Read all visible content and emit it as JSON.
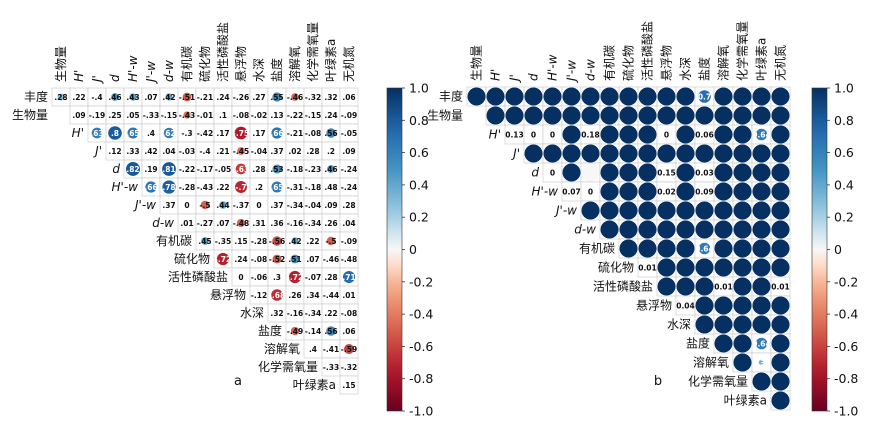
{
  "vars_top": [
    "生物量",
    "H'",
    "J'",
    "d",
    "H'-w",
    "J'-w",
    "d-w",
    "有机碳",
    "硫化物",
    "活性磷酸盐",
    "悬浮物",
    "水深",
    "盐度",
    "溶解氧",
    "化学需氧量",
    "叶绿素a",
    "无机氮"
  ],
  "vars_left": [
    "丰度",
    "生物量",
    "H'",
    "J'",
    "d",
    "H'-w",
    "J'-w",
    "d-w",
    "有机碳",
    "硫化物",
    "活性磷酸盐",
    "悬浮物",
    "水深",
    "盐度",
    "溶解氧",
    "化学需氧量",
    "叶绿素a"
  ],
  "italic_vars": [
    "H'",
    "J'",
    "d",
    "H'-w",
    "J'-w",
    "d-w"
  ],
  "colorbar_ticks": [
    "1.0",
    "0.8",
    "0.6",
    "0.4",
    "0.2",
    "0",
    "-0.2",
    "-0.4",
    "-0.6",
    "-0.8",
    "-1.0"
  ],
  "colors": {
    "pos_max": "#053061",
    "neutral": "#f7f7f7",
    "neg_max": "#67001f",
    "grid": "#cccccc"
  },
  "chart_data": [
    {
      "type": "heatmap",
      "panel_label": "a",
      "metric": "correlation",
      "rows": [
        "丰度",
        "生物量",
        "H'",
        "J'",
        "d",
        "H'-w",
        "J'-w",
        "d-w",
        "有机碳",
        "硫化物",
        "活性磷酸盐",
        "悬浮物",
        "水深",
        "盐度",
        "溶解氧",
        "化学需氧量",
        "叶绿素a"
      ],
      "columns": [
        "生物量",
        "H'",
        "J'",
        "d",
        "H'-w",
        "J'-w",
        "d-w",
        "有机碳",
        "硫化物",
        "活性磷酸盐",
        "悬浮物",
        "水深",
        "盐度",
        "溶解氧",
        "化学需氧量",
        "叶绿素a",
        "无机氮"
      ],
      "values": [
        [
          0.28,
          0.22,
          -0.4,
          0.46,
          0.43,
          0.07,
          0.42,
          -0.51,
          -0.21,
          0.24,
          -0.26,
          0.27,
          0.55,
          -0.46,
          -0.32,
          0.32,
          0.06
        ],
        [
          null,
          0.09,
          -0.19,
          0.25,
          0.05,
          -0.33,
          -0.15,
          -0.43,
          -0.01,
          0.1,
          -0.08,
          -0.02,
          0.13,
          -0.22,
          -0.15,
          0.24,
          -0.09
        ],
        [
          null,
          null,
          0.63,
          0.8,
          0.65,
          0.4,
          0.62,
          -0.3,
          -0.42,
          0.17,
          -0.75,
          0.17,
          0.66,
          -0.21,
          -0.08,
          0.56,
          -0.05
        ],
        [
          null,
          null,
          null,
          0.12,
          0.33,
          0.42,
          0.04,
          -0.03,
          -0.4,
          0.21,
          -0.45,
          -0.04,
          0.37,
          0.02,
          0.28,
          0.2,
          0.09
        ],
        [
          null,
          null,
          null,
          null,
          0.82,
          0.19,
          0.81,
          -0.22,
          -0.17,
          -0.05,
          -0.63,
          0.28,
          0.53,
          -0.18,
          -0.23,
          0.46,
          -0.24
        ],
        [
          null,
          null,
          null,
          null,
          null,
          0.66,
          0.78,
          -0.28,
          -0.43,
          0.22,
          -0.7,
          0.2,
          0.65,
          -0.31,
          -0.18,
          0.48,
          -0.24
        ],
        [
          null,
          null,
          null,
          null,
          null,
          null,
          0.37,
          0,
          -0.5,
          0.44,
          -0.37,
          0,
          0.37,
          -0.34,
          -0.04,
          0.09,
          0.28
        ],
        [
          null,
          null,
          null,
          null,
          null,
          null,
          null,
          0.01,
          -0.27,
          0.07,
          -0.48,
          0.31,
          0.36,
          -0.16,
          -0.34,
          0.26,
          0.04
        ],
        [
          null,
          null,
          null,
          null,
          null,
          null,
          null,
          null,
          0.45,
          -0.35,
          0.15,
          -0.28,
          -0.56,
          0.42,
          0.22,
          -0.5,
          -0.09
        ],
        [
          null,
          null,
          null,
          null,
          null,
          null,
          null,
          null,
          null,
          -0.72,
          0.24,
          -0.08,
          -0.52,
          0.51,
          0.07,
          -0.46,
          -0.48
        ],
        [
          null,
          null,
          null,
          null,
          null,
          null,
          null,
          null,
          null,
          null,
          0,
          -0.06,
          0.3,
          -0.72,
          -0.07,
          0.28,
          0.71
        ],
        [
          null,
          null,
          null,
          null,
          null,
          null,
          null,
          null,
          null,
          null,
          null,
          -0.12,
          -0.68,
          0.26,
          0.34,
          -0.44,
          0.01
        ],
        [
          null,
          null,
          null,
          null,
          null,
          null,
          null,
          null,
          null,
          null,
          null,
          null,
          0.32,
          -0.16,
          -0.34,
          0.22,
          -0.08
        ],
        [
          null,
          null,
          null,
          null,
          null,
          null,
          null,
          null,
          null,
          null,
          null,
          null,
          null,
          -0.49,
          -0.14,
          0.56,
          0.06
        ],
        [
          null,
          null,
          null,
          null,
          null,
          null,
          null,
          null,
          null,
          null,
          null,
          null,
          null,
          null,
          0.4,
          -0.41,
          -0.59
        ],
        [
          null,
          null,
          null,
          null,
          null,
          null,
          null,
          null,
          null,
          null,
          null,
          null,
          null,
          null,
          null,
          -0.33,
          -0.32
        ],
        [
          null,
          null,
          null,
          null,
          null,
          null,
          null,
          null,
          null,
          null,
          null,
          null,
          null,
          null,
          null,
          null,
          0.15
        ]
      ],
      "circle_cells": [
        [
          0,
          0
        ],
        [
          0,
          3
        ],
        [
          0,
          4
        ],
        [
          0,
          6
        ],
        [
          0,
          7
        ],
        [
          0,
          12
        ],
        [
          0,
          13
        ],
        [
          1,
          7
        ],
        [
          2,
          2
        ],
        [
          2,
          3
        ],
        [
          2,
          4
        ],
        [
          2,
          6
        ],
        [
          2,
          10
        ],
        [
          2,
          12
        ],
        [
          2,
          15
        ],
        [
          3,
          10
        ],
        [
          4,
          4
        ],
        [
          4,
          6
        ],
        [
          4,
          10
        ],
        [
          4,
          12
        ],
        [
          4,
          15
        ],
        [
          5,
          5
        ],
        [
          5,
          6
        ],
        [
          5,
          10
        ],
        [
          5,
          12
        ],
        [
          6,
          8
        ],
        [
          6,
          9
        ],
        [
          7,
          10
        ],
        [
          8,
          8
        ],
        [
          8,
          12
        ],
        [
          8,
          13
        ],
        [
          8,
          15
        ],
        [
          9,
          9
        ],
        [
          9,
          12
        ],
        [
          9,
          13
        ],
        [
          10,
          13
        ],
        [
          10,
          16
        ],
        [
          11,
          12
        ],
        [
          13,
          13
        ],
        [
          13,
          15
        ],
        [
          14,
          16
        ]
      ],
      "colorbar_ticks": [
        1.0,
        0.8,
        0.6,
        0.4,
        0.2,
        0,
        -0.2,
        -0.4,
        -0.6,
        -0.8,
        -1.0
      ],
      "vlim": [
        -1,
        1
      ]
    },
    {
      "type": "heatmap",
      "panel_label": "b",
      "metric": "p-value",
      "rows": [
        "丰度",
        "生物量",
        "H'",
        "J'",
        "d",
        "H'-w",
        "J'-w",
        "d-w",
        "有机碳",
        "硫化物",
        "活性磷酸盐",
        "悬浮物",
        "水深",
        "盐度",
        "溶解氧",
        "化学需氧量",
        "叶绿素a"
      ],
      "columns": [
        "生物量",
        "H'",
        "J'",
        "d",
        "H'-w",
        "J'-w",
        "d-w",
        "有机碳",
        "硫化物",
        "活性磷酸盐",
        "悬浮物",
        "水深",
        "盐度",
        "溶解氧",
        "化学需氧量",
        "叶绿素a",
        "无机氮"
      ],
      "values": [
        [
          1,
          1,
          1,
          1,
          1,
          1,
          1,
          1,
          1,
          1,
          1,
          1,
          0.7,
          1,
          1,
          1,
          1
        ],
        [
          null,
          1,
          1,
          1,
          1,
          1,
          1,
          1,
          1,
          1,
          1,
          1,
          1,
          1,
          1,
          1,
          1
        ],
        [
          null,
          null,
          0.13,
          0,
          0,
          1,
          0.18,
          1,
          1,
          1,
          0,
          1,
          0.06,
          1,
          1,
          0.64,
          1
        ],
        [
          null,
          null,
          null,
          1,
          1,
          1,
          1,
          1,
          1,
          1,
          1,
          1,
          1,
          1,
          1,
          1,
          1
        ],
        [
          null,
          null,
          null,
          null,
          0,
          1,
          0,
          1,
          1,
          1,
          0.15,
          1,
          0.03,
          1,
          1,
          1,
          1
        ],
        [
          null,
          null,
          null,
          null,
          null,
          0.07,
          0,
          1,
          1,
          1,
          0.02,
          1,
          0.09,
          1,
          1,
          1,
          1
        ],
        [
          null,
          null,
          null,
          null,
          null,
          null,
          1,
          1,
          1,
          1,
          1,
          1,
          1,
          1,
          1,
          1,
          1
        ],
        [
          null,
          null,
          null,
          null,
          null,
          null,
          null,
          1,
          1,
          1,
          1,
          1,
          1,
          1,
          1,
          1,
          1
        ],
        [
          null,
          null,
          null,
          null,
          null,
          null,
          null,
          null,
          1,
          1,
          1,
          1,
          0.64,
          1,
          1,
          1,
          1
        ],
        [
          null,
          null,
          null,
          null,
          null,
          null,
          null,
          null,
          null,
          0.01,
          1,
          1,
          1,
          1,
          1,
          1,
          1
        ],
        [
          null,
          null,
          null,
          null,
          null,
          null,
          null,
          null,
          null,
          null,
          1,
          1,
          1,
          0.01,
          1,
          1,
          0.01
        ],
        [
          null,
          null,
          null,
          null,
          null,
          null,
          null,
          null,
          null,
          null,
          null,
          0.04,
          1,
          1,
          1,
          1,
          1
        ],
        [
          null,
          null,
          null,
          null,
          null,
          null,
          null,
          null,
          null,
          null,
          null,
          null,
          1,
          1,
          1,
          1,
          1
        ],
        [
          null,
          null,
          null,
          null,
          null,
          null,
          null,
          null,
          null,
          null,
          null,
          null,
          null,
          1,
          1,
          0.64,
          1
        ],
        [
          null,
          null,
          null,
          null,
          null,
          null,
          null,
          null,
          null,
          null,
          null,
          null,
          null,
          null,
          1,
          0.32,
          1
        ],
        [
          null,
          null,
          null,
          null,
          null,
          null,
          null,
          null,
          null,
          null,
          null,
          null,
          null,
          null,
          null,
          1,
          1
        ],
        [
          null,
          null,
          null,
          null,
          null,
          null,
          null,
          null,
          null,
          null,
          null,
          null,
          null,
          null,
          null,
          null,
          1
        ]
      ],
      "labels": [
        [
          0,
          12,
          "0.7"
        ],
        [
          2,
          2,
          "0.13"
        ],
        [
          2,
          3,
          "0"
        ],
        [
          2,
          4,
          "0"
        ],
        [
          2,
          6,
          "0.18"
        ],
        [
          2,
          10,
          "0"
        ],
        [
          2,
          12,
          "0.06"
        ],
        [
          2,
          15,
          "0.64"
        ],
        [
          4,
          4,
          "0"
        ],
        [
          4,
          10,
          "0.15"
        ],
        [
          4,
          12,
          "0.03"
        ],
        [
          5,
          5,
          "0.07"
        ],
        [
          5,
          6,
          "0"
        ],
        [
          5,
          10,
          "0.02"
        ],
        [
          5,
          12,
          "0.09"
        ],
        [
          8,
          12,
          "0.64"
        ],
        [
          9,
          9,
          "0.01"
        ],
        [
          10,
          13,
          "0.01"
        ],
        [
          10,
          16,
          "0.01"
        ],
        [
          11,
          11,
          "0.04"
        ],
        [
          13,
          15,
          "0.64"
        ],
        [
          14,
          15,
          "0.32"
        ]
      ],
      "colorbar_ticks": [
        1.0,
        0.8,
        0.6,
        0.4,
        0.2,
        0,
        -0.2,
        -0.4,
        -0.6,
        -0.8,
        -1.0
      ],
      "vlim": [
        -1,
        1
      ]
    }
  ]
}
